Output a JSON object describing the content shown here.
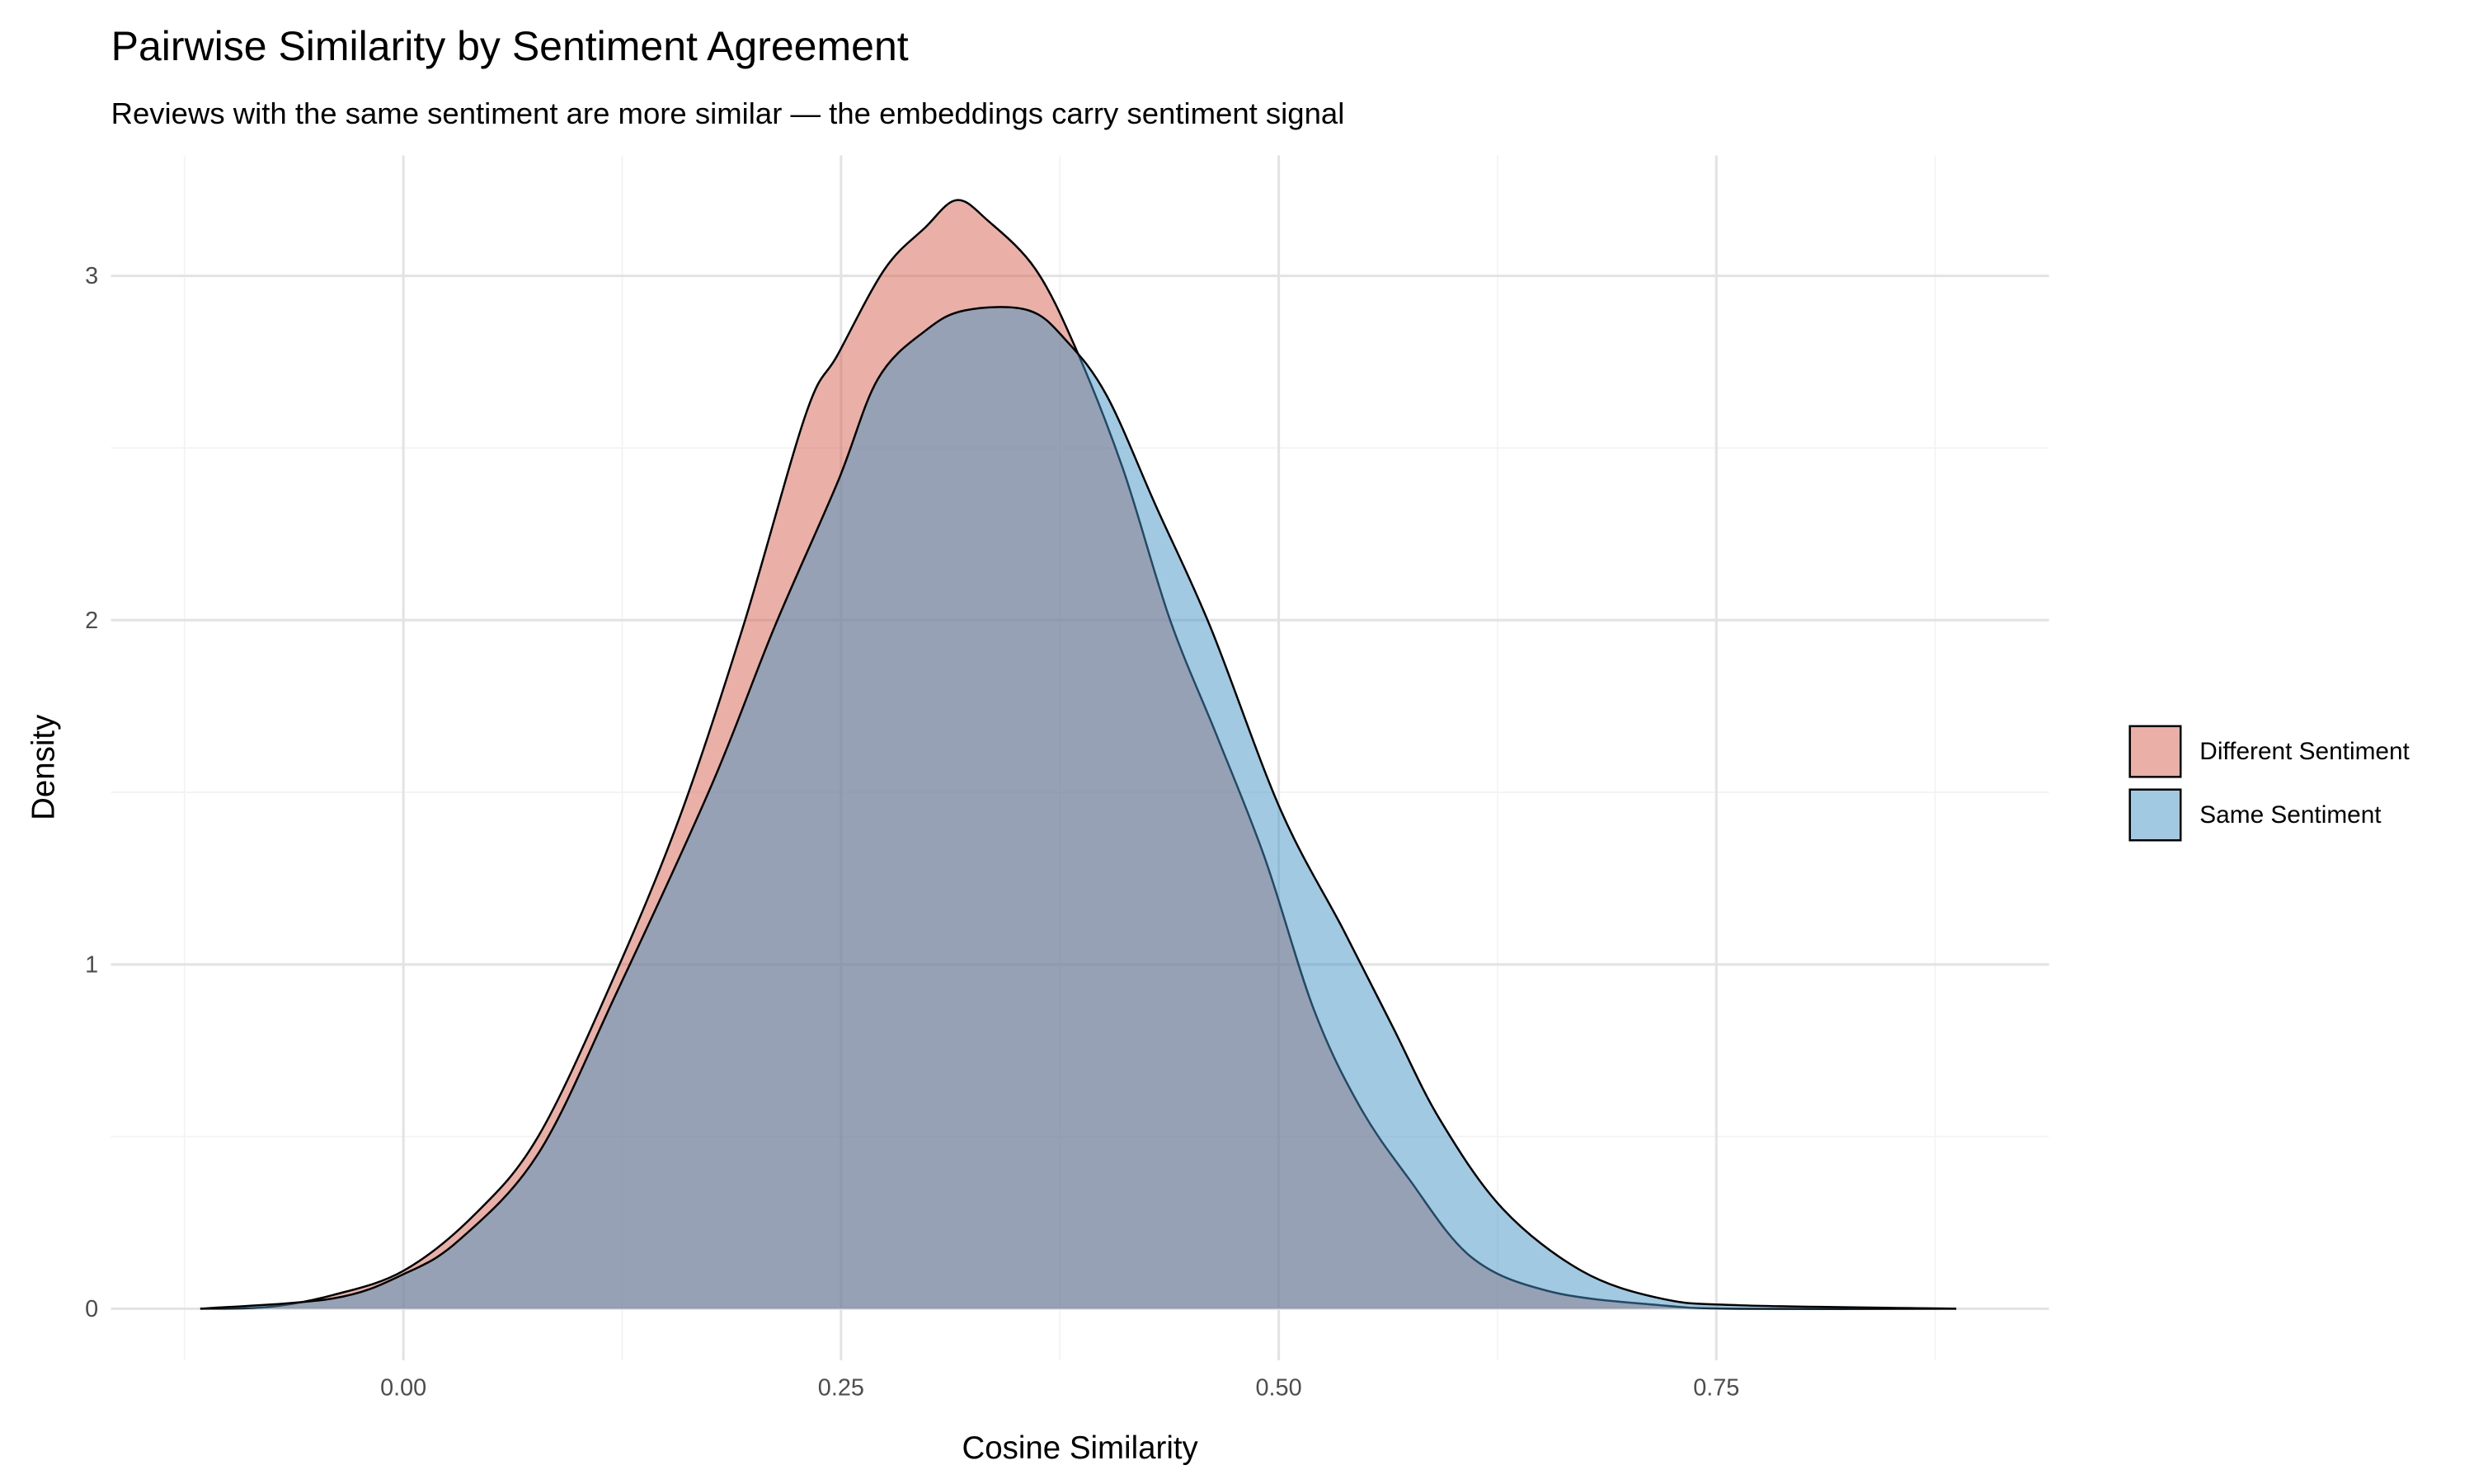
{
  "chart_data": {
    "type": "area",
    "subtype": "density",
    "title": "Pairwise Similarity by Sentiment Agreement",
    "subtitle": "Reviews with the same sentiment are more similar — the embeddings carry sentiment signal",
    "xlabel": "Cosine Similarity",
    "ylabel": "Density",
    "xlim": [
      -0.167,
      0.94
    ],
    "ylim": [
      -0.15,
      3.35
    ],
    "x_ticks": [
      "0.00",
      "0.25",
      "0.50",
      "0.75"
    ],
    "y_ticks": [
      "0",
      "1",
      "2",
      "3"
    ],
    "grid": true,
    "legend_position": "right",
    "series": [
      {
        "name": "Different Sentiment",
        "color": "#D6604D",
        "x": [
          -0.116,
          -0.077,
          -0.04,
          0.0,
          0.04,
          0.077,
          0.12,
          0.158,
          0.194,
          0.23,
          0.248,
          0.275,
          0.298,
          0.316,
          0.334,
          0.361,
          0.384,
          0.411,
          0.438,
          0.465,
          0.492,
          0.52,
          0.546,
          0.574,
          0.61,
          0.655,
          0.718,
          0.763,
          0.887
        ],
        "y": [
          0,
          0.005,
          0.04,
          0.11,
          0.27,
          0.5,
          0.96,
          1.43,
          1.98,
          2.6,
          2.77,
          3.02,
          3.14,
          3.22,
          3.16,
          3.02,
          2.79,
          2.44,
          2.0,
          1.66,
          1.31,
          0.87,
          0.59,
          0.38,
          0.15,
          0.05,
          0.01,
          0.0,
          0
        ]
      },
      {
        "name": "Same Sentiment",
        "color": "#4393C3",
        "x": [
          -0.116,
          -0.04,
          0.0,
          0.032,
          0.077,
          0.122,
          0.176,
          0.212,
          0.248,
          0.271,
          0.298,
          0.321,
          0.357,
          0.379,
          0.402,
          0.43,
          0.461,
          0.501,
          0.537,
          0.565,
          0.592,
          0.628,
          0.673,
          0.718,
          0.763,
          0.887
        ],
        "y": [
          0,
          0.03,
          0.1,
          0.2,
          0.45,
          0.92,
          1.52,
          1.98,
          2.4,
          2.7,
          2.84,
          2.9,
          2.9,
          2.81,
          2.65,
          2.33,
          1.98,
          1.45,
          1.1,
          0.82,
          0.55,
          0.29,
          0.11,
          0.03,
          0.01,
          0
        ]
      }
    ]
  }
}
